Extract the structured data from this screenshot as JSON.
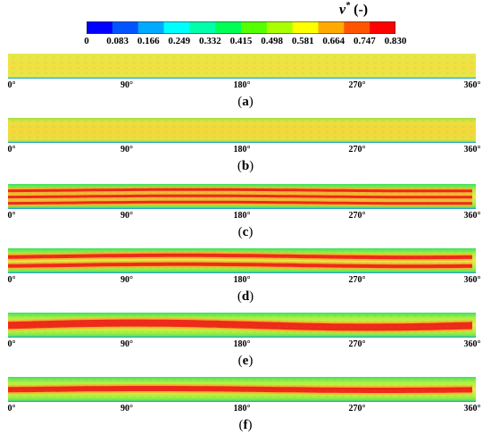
{
  "colorbar": {
    "title_symbol": "v",
    "title_sup": "*",
    "title_unit": "(-)",
    "ticks": [
      "0",
      "0.083",
      "0.166",
      "0.249",
      "0.332",
      "0.415",
      "0.498",
      "0.581",
      "0.664",
      "0.747",
      "0.830"
    ],
    "colors": [
      "#0000ff",
      "#0055ff",
      "#00aaff",
      "#00ffff",
      "#00ffaa",
      "#00ff55",
      "#55ff00",
      "#aaff00",
      "#ffff00",
      "#ffaa00",
      "#ff5500",
      "#ff0000"
    ]
  },
  "axis_labels": [
    "0°",
    "90°",
    "180°",
    "270°",
    "360°"
  ],
  "panels": [
    {
      "caption": "a",
      "pattern": "uniform"
    },
    {
      "caption": "b",
      "pattern": "uniform-dark"
    },
    {
      "caption": "c",
      "pattern": "three-streaks"
    },
    {
      "caption": "d",
      "pattern": "two-streaks"
    },
    {
      "caption": "e",
      "pattern": "one-wide-streak"
    },
    {
      "caption": "f",
      "pattern": "one-narrow-streak"
    }
  ]
}
